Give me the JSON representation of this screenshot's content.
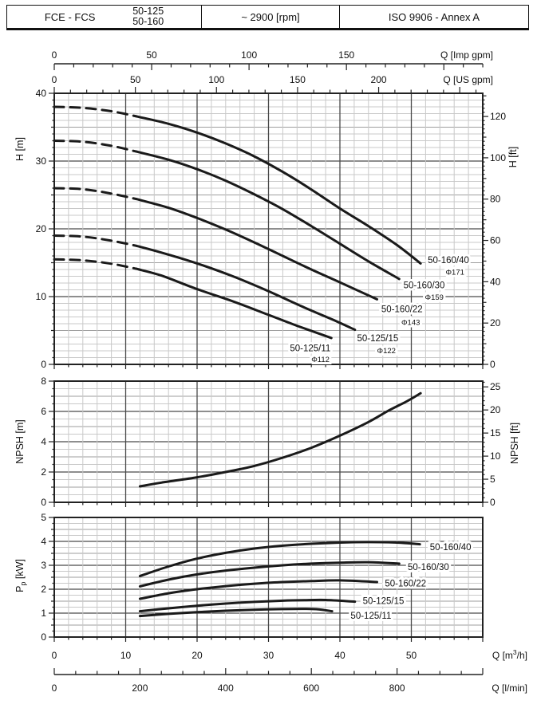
{
  "header": {
    "series": "FCE - FCS",
    "models": [
      "50-125",
      "50-160"
    ],
    "speed": "~ 2900 [rpm]",
    "standard": "ISO 9906 - Annex A"
  },
  "colors": {
    "curve": "#1a1a1a",
    "grid_minor": "#c9c9c9",
    "grid_medium": "#9e9e9e",
    "grid_major": "#4a4a4a",
    "border": "#222222",
    "text": "#111111"
  },
  "flow_axes": {
    "imp_gpm": {
      "title": "Q [Imp gpm]",
      "major_ticks": [
        0,
        50,
        100,
        150
      ],
      "minor_step": 10,
      "max": 220,
      "m3h_per_unit": 0.27276
    },
    "us_gpm": {
      "title": "Q [US gpm]",
      "major_ticks": [
        0,
        50,
        100,
        150,
        200
      ],
      "minor_step": 10,
      "max": 264,
      "m3h_per_unit": 0.22712
    },
    "m3h": {
      "title_pre": "Q [m",
      "title_sup": "3",
      "title_post": "/h]",
      "major_ticks": [
        0,
        10,
        20,
        30,
        40,
        50
      ],
      "minor_step": 2,
      "max": 60,
      "m3h_per_unit": 1
    },
    "l_min": {
      "title": "Q [l/min]",
      "major_ticks": [
        0,
        200,
        400,
        600,
        800
      ],
      "minor_step": 50,
      "max": 1000,
      "m3h_per_unit": 0.06
    }
  },
  "chart_data": [
    {
      "type": "line",
      "name": "head_capacity",
      "y_left": {
        "label": "H [m]",
        "ticks": [
          0,
          10,
          20,
          30,
          40
        ],
        "max": 40,
        "minor_step": 1,
        "medium_step": 5,
        "major_step": 10
      },
      "y_right": {
        "label": "H [ft]",
        "ticks": [
          0,
          20,
          40,
          60,
          80,
          100,
          120
        ],
        "minor_step": 2,
        "medium_step": 10,
        "major_step": 20,
        "m_per_unit": 0.3048
      },
      "series": [
        {
          "name": "50-160/40",
          "diameter": "Φ171",
          "dashed": [
            [
              0,
              38
            ],
            [
              4,
              37.85
            ],
            [
              8,
              37.35
            ],
            [
              11.5,
              36.6
            ]
          ],
          "solid": [
            [
              11.5,
              36.6
            ],
            [
              16,
              35.5
            ],
            [
              20,
              34.2
            ],
            [
              24,
              32.6
            ],
            [
              28,
              30.7
            ],
            [
              32,
              28.4
            ],
            [
              36,
              25.8
            ],
            [
              40,
              23.0
            ],
            [
              44,
              20.4
            ],
            [
              48,
              17.6
            ],
            [
              51.3,
              14.9
            ]
          ],
          "label_at": [
            52.3,
            15.4
          ],
          "dia_at": [
            54.8,
            13.6
          ]
        },
        {
          "name": "50-160/30",
          "diameter": "Φ159",
          "dashed": [
            [
              0,
              33
            ],
            [
              4,
              32.85
            ],
            [
              8,
              32.25
            ],
            [
              11.5,
              31.4
            ]
          ],
          "solid": [
            [
              11.5,
              31.4
            ],
            [
              16,
              30.2
            ],
            [
              20,
              28.8
            ],
            [
              24,
              27.1
            ],
            [
              28,
              25.1
            ],
            [
              32,
              22.9
            ],
            [
              36,
              20.4
            ],
            [
              40,
              17.8
            ],
            [
              44,
              15.2
            ],
            [
              48.3,
              12.6
            ]
          ],
          "label_at": [
            48.9,
            11.7
          ],
          "dia_at": [
            51.9,
            9.9
          ]
        },
        {
          "name": "50-160/22",
          "diameter": "Φ143",
          "dashed": [
            [
              0,
              26
            ],
            [
              4,
              25.85
            ],
            [
              8,
              25.2
            ],
            [
              11.5,
              24.4
            ]
          ],
          "solid": [
            [
              11.5,
              24.4
            ],
            [
              16,
              23.1
            ],
            [
              20,
              21.6
            ],
            [
              24,
              19.9
            ],
            [
              28,
              18.0
            ],
            [
              32,
              16.0
            ],
            [
              36,
              14.0
            ],
            [
              40,
              12.1
            ],
            [
              45.2,
              9.6
            ]
          ],
          "label_at": [
            45.8,
            8.2
          ],
          "dia_at": [
            48.6,
            6.2
          ]
        },
        {
          "name": "50-125/15",
          "diameter": "Φ122",
          "dashed": [
            [
              0,
              19
            ],
            [
              4,
              18.85
            ],
            [
              8,
              18.25
            ],
            [
              11.5,
              17.5
            ]
          ],
          "solid": [
            [
              11.5,
              17.5
            ],
            [
              15,
              16.5
            ],
            [
              20,
              14.9
            ],
            [
              25,
              13.0
            ],
            [
              30,
              10.8
            ],
            [
              35,
              8.4
            ],
            [
              39,
              6.6
            ],
            [
              42.1,
              5.1
            ]
          ],
          "label_at": [
            42.4,
            3.9
          ],
          "dia_at": [
            45.2,
            2.0
          ]
        },
        {
          "name": "50-125/11",
          "diameter": "Φ112",
          "dashed": [
            [
              0,
              15.5
            ],
            [
              4,
              15.35
            ],
            [
              8,
              14.85
            ],
            [
              11.5,
              14.1
            ]
          ],
          "solid": [
            [
              11.5,
              14.1
            ],
            [
              15,
              13.1
            ],
            [
              20,
              11.1
            ],
            [
              25,
              9.3
            ],
            [
              30,
              7.3
            ],
            [
              34,
              5.7
            ],
            [
              38.8,
              3.9
            ]
          ],
          "label_at": [
            33.0,
            2.4
          ],
          "dia_at": [
            36.0,
            0.7
          ]
        }
      ]
    },
    {
      "type": "line",
      "name": "npsh",
      "y_left": {
        "label": "NPSH [m]",
        "ticks": [
          0,
          2,
          4,
          6,
          8
        ],
        "max": 8,
        "minor_step": 0.5,
        "medium_step": 1,
        "major_step": 2
      },
      "y_right": {
        "label": "NPSH [ft]",
        "ticks": [
          0,
          5,
          10,
          15,
          20,
          25
        ],
        "minor_step": 1,
        "medium_step": 5,
        "major_step": 5,
        "m_per_unit": 0.3048
      },
      "series": [
        {
          "name": "NPSH",
          "solid": [
            [
              12,
              1.05
            ],
            [
              15,
              1.3
            ],
            [
              20,
              1.65
            ],
            [
              24,
              2.0
            ],
            [
              28,
              2.4
            ],
            [
              32,
              2.95
            ],
            [
              36,
              3.6
            ],
            [
              40,
              4.4
            ],
            [
              44,
              5.3
            ],
            [
              47,
              6.1
            ],
            [
              49.5,
              6.7
            ],
            [
              51.3,
              7.2
            ]
          ]
        }
      ]
    },
    {
      "type": "line",
      "name": "power",
      "y_left": {
        "label_main": "P",
        "label_sub": "p",
        "label_post": " [kW]",
        "ticks": [
          0,
          1,
          2,
          3,
          4,
          5
        ],
        "max": 5,
        "minor_step": 0.25,
        "medium_step": 0.5,
        "major_step": 1
      },
      "series": [
        {
          "name": "50-160/40",
          "solid": [
            [
              12,
              2.55
            ],
            [
              16,
              2.95
            ],
            [
              20,
              3.28
            ],
            [
              24,
              3.52
            ],
            [
              28,
              3.7
            ],
            [
              32,
              3.82
            ],
            [
              36,
              3.9
            ],
            [
              40,
              3.95
            ],
            [
              44,
              3.97
            ],
            [
              48,
              3.95
            ],
            [
              51.2,
              3.88
            ]
          ],
          "label_at": [
            52.6,
            3.77
          ]
        },
        {
          "name": "50-160/30",
          "solid": [
            [
              12,
              2.12
            ],
            [
              16,
              2.4
            ],
            [
              20,
              2.62
            ],
            [
              24,
              2.78
            ],
            [
              28,
              2.9
            ],
            [
              32,
              3.0
            ],
            [
              36,
              3.07
            ],
            [
              40,
              3.11
            ],
            [
              44,
              3.13
            ],
            [
              48.3,
              3.07
            ]
          ],
          "label_at": [
            49.5,
            2.93
          ]
        },
        {
          "name": "50-160/22",
          "solid": [
            [
              12,
              1.6
            ],
            [
              16,
              1.83
            ],
            [
              20,
              2.0
            ],
            [
              24,
              2.13
            ],
            [
              28,
              2.23
            ],
            [
              32,
              2.3
            ],
            [
              36,
              2.34
            ],
            [
              40,
              2.37
            ],
            [
              45.2,
              2.3
            ]
          ],
          "label_at": [
            46.3,
            2.25
          ]
        },
        {
          "name": "50-125/15",
          "solid": [
            [
              12,
              1.08
            ],
            [
              16,
              1.2
            ],
            [
              20,
              1.31
            ],
            [
              24,
              1.4
            ],
            [
              28,
              1.47
            ],
            [
              32,
              1.52
            ],
            [
              35,
              1.54
            ],
            [
              38,
              1.55
            ],
            [
              42.1,
              1.48
            ]
          ],
          "label_at": [
            43.2,
            1.52
          ]
        },
        {
          "name": "50-125/11",
          "solid": [
            [
              12,
              0.88
            ],
            [
              16,
              0.97
            ],
            [
              20,
              1.04
            ],
            [
              24,
              1.1
            ],
            [
              28,
              1.14
            ],
            [
              32,
              1.17
            ],
            [
              35,
              1.18
            ],
            [
              37,
              1.16
            ],
            [
              38.9,
              1.08
            ]
          ],
          "label_at": [
            41.5,
            0.9
          ]
        }
      ]
    }
  ]
}
